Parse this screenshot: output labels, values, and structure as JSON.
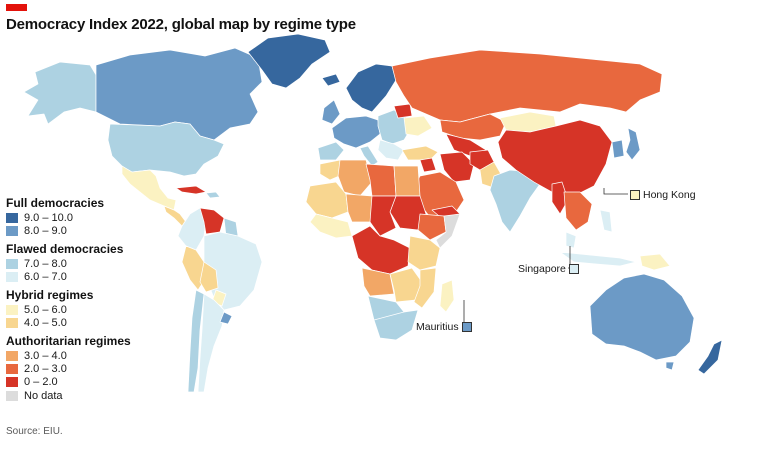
{
  "title": "Democracy Index 2022, global map by regime type",
  "source": "Source: EIU.",
  "legend": {
    "groups": [
      {
        "title": "Full democracies",
        "items": [
          {
            "label": "9.0 – 10.0",
            "color": "#36679e"
          },
          {
            "label": "8.0 – 9.0",
            "color": "#6c9ac6"
          }
        ]
      },
      {
        "title": "Flawed democracies",
        "items": [
          {
            "label": "7.0 – 8.0",
            "color": "#add2e2"
          },
          {
            "label": "6.0 – 7.0",
            "color": "#dbeef4"
          }
        ]
      },
      {
        "title": "Hybrid regimes",
        "items": [
          {
            "label": "5.0 – 6.0",
            "color": "#fbf2c2"
          },
          {
            "label": "4.0 – 5.0",
            "color": "#f8d690"
          }
        ]
      },
      {
        "title": "Authoritarian regimes",
        "items": [
          {
            "label": "3.0 – 4.0",
            "color": "#f2a766"
          },
          {
            "label": "2.0 – 3.0",
            "color": "#e8683e"
          },
          {
            "label": "0 – 2.0",
            "color": "#d63427"
          }
        ]
      }
    ],
    "no_data": {
      "label": "No data",
      "color": "#dcdcdc"
    }
  },
  "callouts": {
    "hong_kong": {
      "label": "Hong Kong",
      "color": "#fbf2c2"
    },
    "singapore": {
      "label": "Singapore",
      "color": "#dbeef4"
    },
    "mauritius": {
      "label": "Mauritius",
      "color": "#6c9ac6"
    }
  },
  "colors": {
    "brand": "#e3120b",
    "border": "#ffffff",
    "full_high": "#36679e",
    "full_low": "#6c9ac6",
    "flawed_high": "#add2e2",
    "flawed_low": "#dbeef4",
    "hybrid_high": "#fbf2c2",
    "hybrid_low": "#f8d690",
    "auth_high": "#f2a766",
    "auth_mid": "#e8683e",
    "auth_low": "#d63427"
  }
}
